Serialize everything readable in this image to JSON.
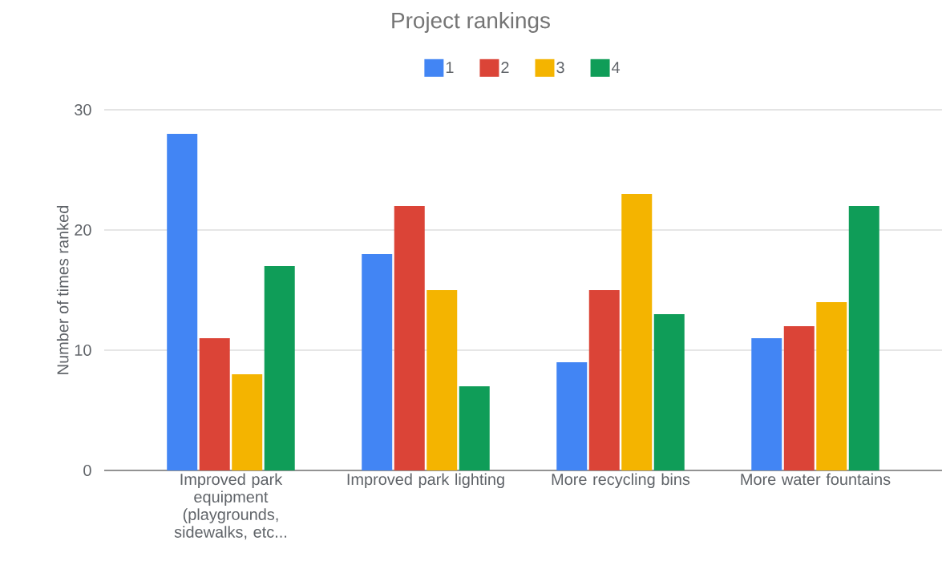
{
  "chart_data": {
    "type": "bar",
    "title": "Project rankings",
    "ylabel": "Number of times ranked",
    "categories": [
      "Improved park equipment (playgrounds, sidewalks, etc...",
      "Improved park lighting",
      "More recycling bins",
      "More water fountains"
    ],
    "series": [
      {
        "name": "1",
        "color": "#4285f4",
        "values": [
          28,
          18,
          9,
          11
        ]
      },
      {
        "name": "2",
        "color": "#db4437",
        "values": [
          11,
          22,
          15,
          12
        ]
      },
      {
        "name": "3",
        "color": "#f4b400",
        "values": [
          8,
          15,
          23,
          14
        ]
      },
      {
        "name": "4",
        "color": "#0f9d58",
        "values": [
          17,
          7,
          13,
          22
        ]
      }
    ],
    "ylim": [
      0,
      30
    ],
    "yticks": [
      0,
      10,
      20,
      30
    ],
    "grid": "y",
    "legend": "top"
  }
}
